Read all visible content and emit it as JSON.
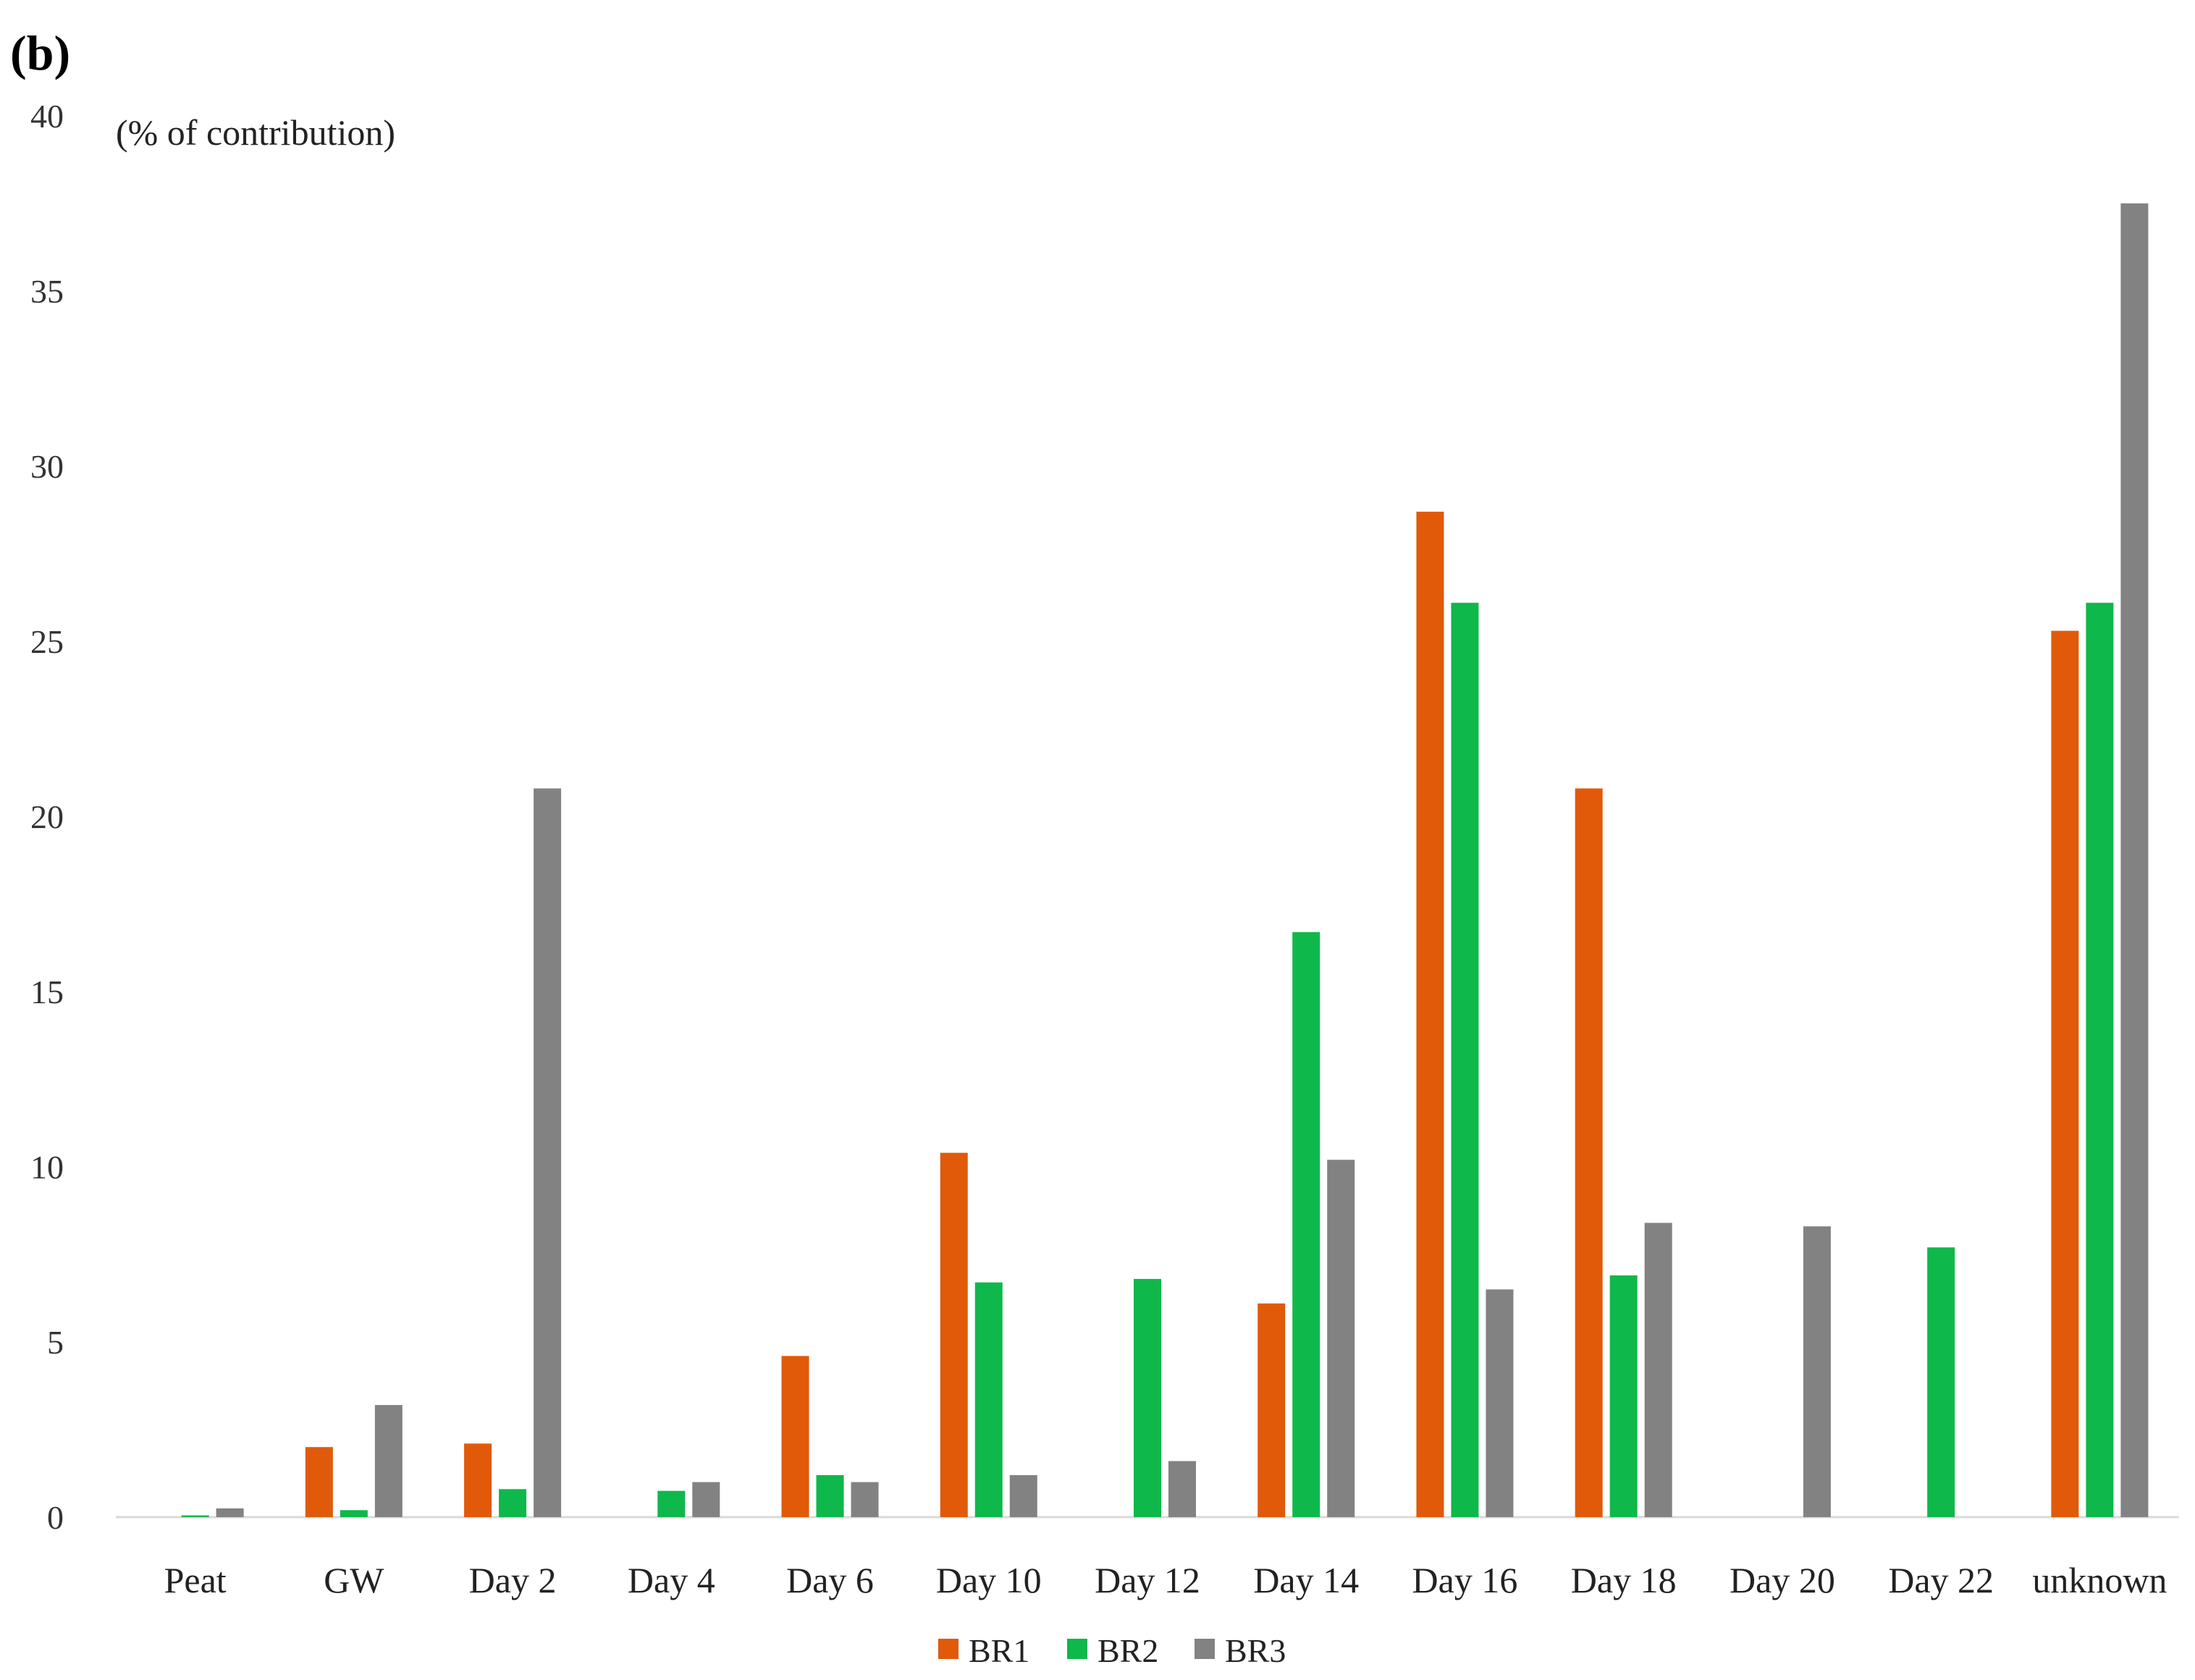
{
  "panel_label": "(b)",
  "chart_data": {
    "type": "bar",
    "ylabel": "(% of contribution)",
    "ylim": [
      0,
      40
    ],
    "yticks": [
      0,
      5,
      10,
      15,
      20,
      25,
      30,
      35,
      40
    ],
    "categories": [
      "Peat",
      "GW",
      "Day 2",
      "Day 4",
      "Day 6",
      "Day 10",
      "Day 12",
      "Day 14",
      "Day 16",
      "Day 18",
      "Day 20",
      "Day 22",
      "unknown"
    ],
    "series": [
      {
        "name": "BR1",
        "color": "#E05A0A",
        "values": [
          0,
          2.0,
          2.1,
          0,
          4.6,
          10.4,
          0,
          6.1,
          28.7,
          20.8,
          0,
          0,
          25.3
        ]
      },
      {
        "name": "BR2",
        "color": "#0FB84A",
        "values": [
          0.05,
          0.2,
          0.8,
          0.75,
          1.2,
          6.7,
          6.8,
          16.7,
          26.1,
          6.9,
          0,
          7.7,
          26.1
        ]
      },
      {
        "name": "BR3",
        "color": "#828282",
        "values": [
          0.25,
          3.2,
          20.8,
          1.0,
          1.0,
          1.2,
          1.6,
          10.2,
          6.5,
          8.4,
          8.3,
          0,
          37.5
        ]
      }
    ],
    "grid": false,
    "legend": "bottom"
  }
}
